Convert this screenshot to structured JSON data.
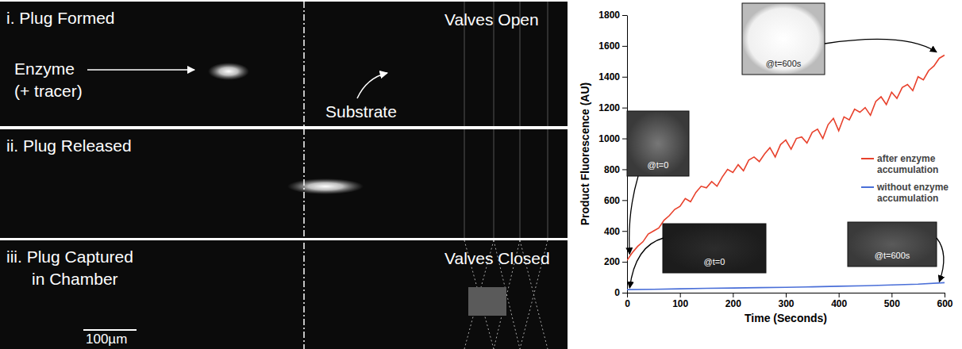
{
  "image_panels": [
    {
      "title": [
        "i. Plug Formed"
      ],
      "valve_label": "Valves Open",
      "enzyme_label": [
        "Enzyme",
        "(+ tracer)"
      ],
      "substrate_label": "Substrate"
    },
    {
      "title": [
        "ii. Plug Released"
      ]
    },
    {
      "title": [
        "iii. Plug Captured",
        "in Chamber"
      ],
      "valve_label": "Valves Closed",
      "scale_bar": "100µm"
    }
  ],
  "chart_data": {
    "type": "line",
    "x_label": "Time (Seconds)",
    "y_label": "Product Fluorescence (AU)",
    "xlim": [
      0,
      600
    ],
    "ylim": [
      0,
      1800
    ],
    "xticks": [
      0,
      100,
      200,
      300,
      400,
      500,
      600
    ],
    "yticks": [
      0,
      200,
      400,
      600,
      800,
      1000,
      1200,
      1400,
      1600,
      1800
    ],
    "grid": false,
    "legend": "right",
    "series": [
      {
        "name": "after enzyme accumulation",
        "color": "#e8412c",
        "x": [
          0,
          10,
          20,
          30,
          40,
          50,
          60,
          70,
          80,
          90,
          100,
          110,
          120,
          130,
          140,
          150,
          160,
          170,
          180,
          190,
          200,
          210,
          220,
          230,
          240,
          250,
          260,
          270,
          280,
          290,
          300,
          310,
          320,
          330,
          340,
          350,
          360,
          370,
          380,
          390,
          400,
          410,
          420,
          430,
          440,
          450,
          460,
          470,
          480,
          490,
          500,
          510,
          520,
          530,
          540,
          550,
          560,
          570,
          580,
          590,
          600
        ],
        "values": [
          210,
          260,
          300,
          330,
          380,
          400,
          420,
          470,
          500,
          540,
          560,
          610,
          590,
          650,
          690,
          680,
          720,
          690,
          750,
          800,
          780,
          830,
          790,
          860,
          880,
          850,
          900,
          940,
          880,
          960,
          990,
          930,
          1000,
          1010,
          970,
          1040,
          1060,
          1000,
          1090,
          1130,
          1050,
          1140,
          1120,
          1190,
          1170,
          1200,
          1150,
          1240,
          1270,
          1220,
          1300,
          1260,
          1330,
          1350,
          1310,
          1400,
          1380,
          1440,
          1470,
          1520,
          1540
        ]
      },
      {
        "name": "without enzyme accumulation",
        "color": "#4a6fd8",
        "x": [
          0,
          50,
          100,
          150,
          200,
          250,
          300,
          350,
          400,
          450,
          500,
          550,
          600
        ],
        "values": [
          20,
          22,
          25,
          28,
          30,
          33,
          35,
          38,
          42,
          45,
          50,
          55,
          65
        ]
      }
    ],
    "annotations": [
      {
        "text": "@t=0",
        "x": 5,
        "y": 250
      },
      {
        "text": "@t=600s",
        "x": 585,
        "y": 1560
      },
      {
        "text": "@t=0",
        "x": 5,
        "y": 30
      },
      {
        "text": "@t=600s",
        "x": 590,
        "y": 70
      }
    ]
  }
}
